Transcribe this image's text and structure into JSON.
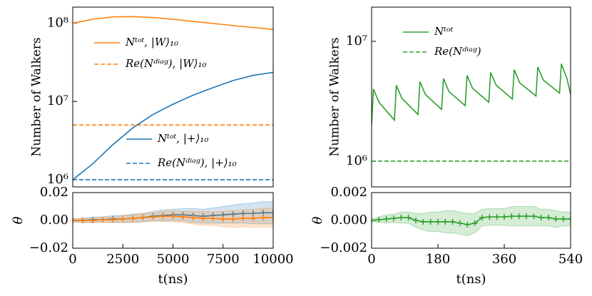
{
  "chart_data": [
    {
      "type": "line",
      "ylabel": "Number of Walkers",
      "log_y": true,
      "xlim": [
        0,
        10000
      ],
      "ylim": [
        810000,
        160000000
      ],
      "yticks": [
        {
          "value": 1000000,
          "label": "10⁶"
        },
        {
          "value": 10000000,
          "label": "10⁷"
        },
        {
          "value": 100000000,
          "label": "10⁸"
        }
      ],
      "x": [
        0,
        1000,
        2000,
        3000,
        4000,
        5000,
        6000,
        7000,
        8000,
        9000,
        10000
      ],
      "series": [
        {
          "name": "Nᵗᵒᵗ, |W⟩₁₀",
          "color": "#ff7f0e",
          "dash": false,
          "values": [
            100000000,
            112000000,
            120000000,
            121000000,
            118000000,
            112000000,
            105000000,
            99000000,
            93000000,
            88000000,
            83000000
          ]
        },
        {
          "name": "Re(Nᵈⁱᵃᵍ), |W⟩₁₀",
          "color": "#ff7f0e",
          "dash": true,
          "values": [
            5000000,
            5000000,
            5000000,
            5000000,
            5000000,
            5000000,
            5000000,
            5000000,
            5000000,
            5000000,
            5000000
          ]
        },
        {
          "name": "Nᵗᵒᵗ, |+⟩₁₀",
          "color": "#1f77b4",
          "dash": false,
          "values": [
            1000000,
            1600000,
            2800000,
            4600000,
            6800000,
            9200000,
            12000000,
            15000000,
            18500000,
            21500000,
            23500000
          ]
        },
        {
          "name": "Re(Nᵈⁱᵃᵍ), |+⟩₁₀",
          "color": "#1f77b4",
          "dash": true,
          "values": [
            1000000,
            1000000,
            1000000,
            1000000,
            1000000,
            1000000,
            1000000,
            1000000,
            1000000,
            1000000,
            1000000
          ]
        }
      ]
    },
    {
      "type": "band",
      "ylabel": "θ",
      "xlabel": "t(ns)",
      "xlim": [
        0,
        10000
      ],
      "xticks": [
        0,
        2500,
        5000,
        7500,
        10000
      ],
      "ylim": [
        -0.02,
        0.02
      ],
      "yticks": [
        {
          "value": -0.02,
          "label": "−0.02"
        },
        {
          "value": 0,
          "label": "0.00"
        },
        0.02
      ],
      "x": [
        0,
        500,
        1000,
        1500,
        2000,
        2500,
        3000,
        3500,
        4000,
        4500,
        5000,
        5500,
        6000,
        6500,
        7000,
        7500,
        8000,
        8500,
        9000,
        9500,
        10000
      ],
      "series": [
        {
          "color": "#1f77b4",
          "values": [
            0,
            0,
            0.0005,
            0.0005,
            0.001,
            0.001,
            0.0015,
            0.002,
            0.003,
            0.0035,
            0.004,
            0.004,
            0.0035,
            0.003,
            0.0035,
            0.004,
            0.0045,
            0.005,
            0.005,
            0.0055,
            0.0055
          ],
          "errors": [
            0.001,
            0.0015,
            0.002,
            0.002,
            0.0025,
            0.0025,
            0.003,
            0.003,
            0.0035,
            0.004,
            0.004,
            0.0045,
            0.005,
            0.005,
            0.0055,
            0.006,
            0.0065,
            0.007,
            0.0075,
            0.008,
            0.008
          ]
        },
        {
          "color": "#ff7f0e",
          "values": [
            0,
            0,
            0,
            0.0005,
            0.0005,
            0.001,
            0.0015,
            0.002,
            0.0025,
            0.003,
            0.003,
            0.0025,
            0.002,
            0.0015,
            0.0015,
            0.001,
            0.001,
            0.0015,
            0.0015,
            0.002,
            0.002
          ],
          "errors": [
            0.001,
            0.0015,
            0.0015,
            0.002,
            0.002,
            0.0025,
            0.0025,
            0.003,
            0.003,
            0.0035,
            0.004,
            0.004,
            0.0045,
            0.005,
            0.005,
            0.0055,
            0.006,
            0.006,
            0.0065,
            0.0065,
            0.007
          ]
        }
      ]
    },
    {
      "type": "line",
      "ylabel": "Number of Walkers",
      "log_y": true,
      "xlim": [
        0,
        540
      ],
      "ylim": [
        610000,
        19300000
      ],
      "yticks": [
        {
          "value": 1000000,
          "label": "10⁶"
        },
        {
          "value": 10000000,
          "label": "10⁷"
        }
      ],
      "x": [
        0,
        5,
        20,
        62,
        67,
        82,
        126,
        131,
        146,
        190,
        195,
        210,
        254,
        259,
        274,
        318,
        323,
        338,
        382,
        387,
        402,
        446,
        451,
        466,
        510,
        515,
        530,
        540
      ],
      "series": [
        {
          "name": "Nᵗᵒᵗ",
          "color": "#2ca02c",
          "dash": false,
          "values": [
            2000000,
            4000000,
            3100000,
            2200000,
            4300000,
            3350000,
            2450000,
            4600000,
            3600000,
            2700000,
            4900000,
            3800000,
            2900000,
            5200000,
            4050000,
            3100000,
            5500000,
            4300000,
            3300000,
            5800000,
            4500000,
            3500000,
            6100000,
            4750000,
            3700000,
            6500000,
            4900000,
            3600000
          ]
        },
        {
          "name": "Re(Nᵈⁱᵃᵍ)",
          "color": "#2ca02c",
          "dash": true,
          "values": [
            1000000,
            1000000,
            1000000,
            1000000,
            1000000,
            1000000,
            1000000,
            1000000,
            1000000,
            1000000,
            1000000,
            1000000,
            1000000,
            1000000,
            1000000,
            1000000,
            1000000,
            1000000,
            1000000,
            1000000,
            1000000,
            1000000,
            1000000,
            1000000,
            1000000,
            1000000,
            1000000,
            1000000
          ]
        }
      ]
    },
    {
      "type": "band",
      "ylabel": "θ",
      "xlabel": "t(ns)",
      "xlim": [
        0,
        540
      ],
      "xticks": [
        0,
        180,
        360,
        540
      ],
      "ylim": [
        -0.002,
        0.002
      ],
      "yticks": [
        {
          "value": -0.002,
          "label": "−0.002"
        },
        {
          "value": 0,
          "label": "0.000"
        },
        0.002
      ],
      "x": [
        0,
        20,
        40,
        60,
        80,
        100,
        120,
        140,
        160,
        180,
        200,
        220,
        240,
        260,
        280,
        300,
        320,
        340,
        360,
        380,
        400,
        420,
        440,
        460,
        480,
        500,
        520,
        540
      ],
      "series": [
        {
          "color": "#2ca02c",
          "values": [
            0,
            5e-05,
            0.0001,
            0.00015,
            0.0002,
            0.0002,
            0,
            -0.0001,
            -0.0001,
            -0.0001,
            -0.0001,
            -0.0001,
            -0.0002,
            -0.0003,
            -0.0002,
            0.0002,
            0.00025,
            0.00025,
            0.00025,
            0.0003,
            0.0003,
            0.0003,
            0.0003,
            0.0002,
            0.0002,
            0.0001,
            0.0001,
            0.0001
          ],
          "errors": [
            0.0001,
            0.0002,
            0.0003,
            0.0003,
            0.0004,
            0.0004,
            0.0005,
            0.0006,
            0.0007,
            0.0007,
            0.0008,
            0.0008,
            0.0008,
            0.0008,
            0.0007,
            0.0006,
            0.0006,
            0.0006,
            0.0006,
            0.0007,
            0.0007,
            0.0007,
            0.0007,
            0.0006,
            0.0006,
            0.0006,
            0.0005,
            0.0005
          ]
        }
      ]
    }
  ]
}
